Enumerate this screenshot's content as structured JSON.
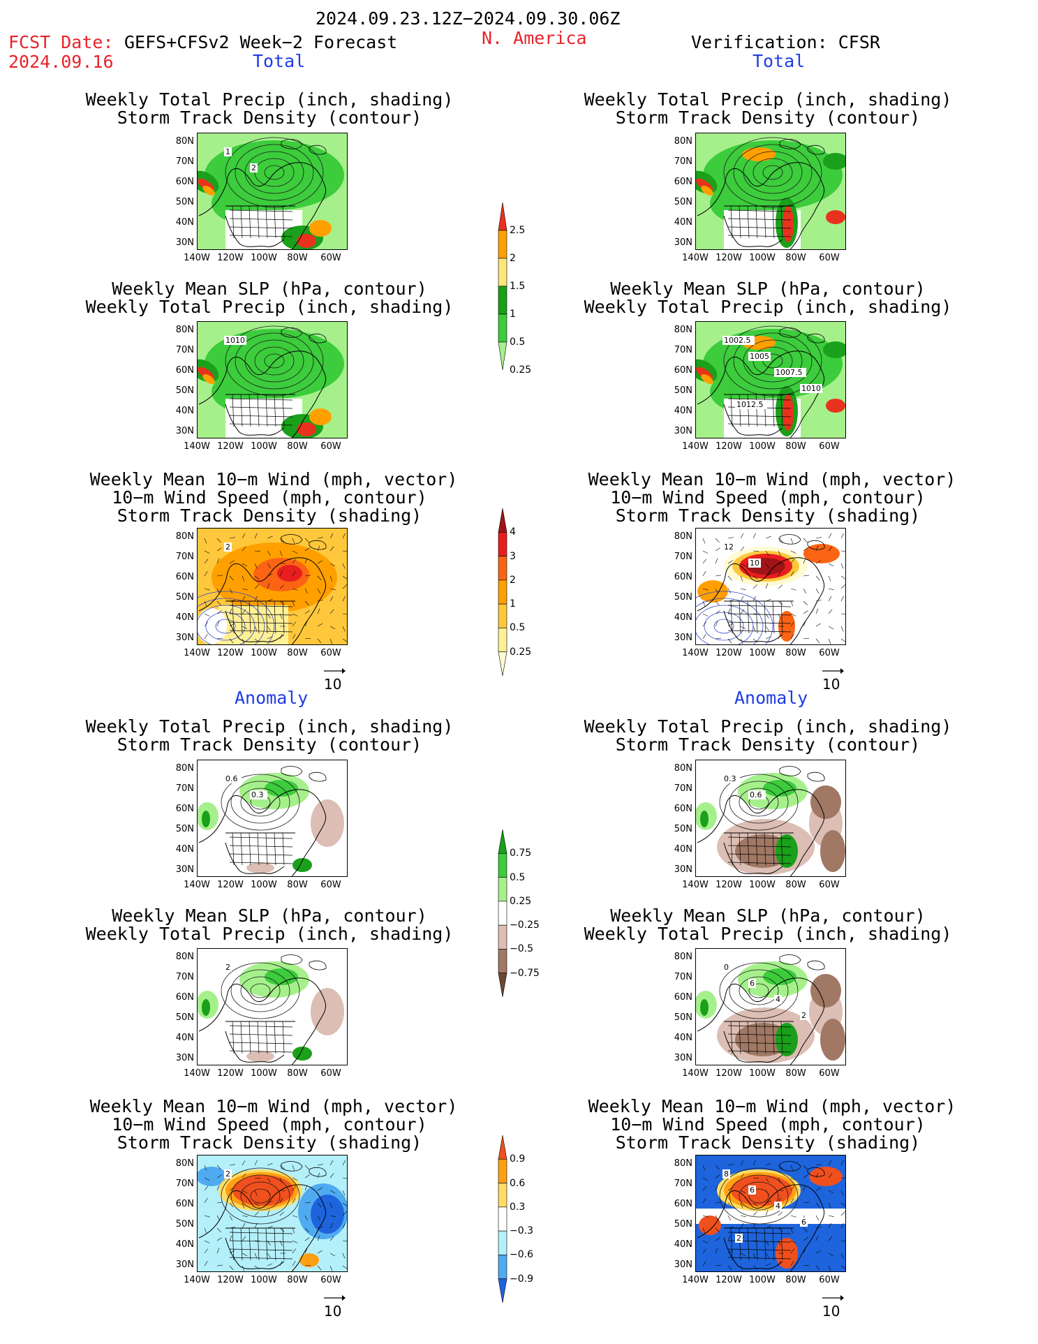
{
  "header": {
    "period": "2024.09.23.12Z−2024.09.30.06Z",
    "fcst_label": "FCST Date:",
    "fcst_date": "2024.09.16",
    "model": "GEFS+CFSv2 Week−2 Forecast",
    "region": "N. America",
    "verification": "Verification: CFSR"
  },
  "sections": {
    "total": "Total",
    "anomaly": "Anomaly"
  },
  "panel_titles": {
    "precip_storm": [
      "Weekly Total Precip (inch, shading)",
      "Storm Track Density (contour)"
    ],
    "slp_precip": [
      "Weekly Mean SLP (hPa, contour)",
      "Weekly Total Precip (inch, shading)"
    ],
    "wind_storm": [
      "Weekly Mean 10−m Wind (mph, vector)",
      "10−m Wind Speed (mph, contour)",
      "Storm Track Density (shading)"
    ]
  },
  "axes": {
    "lat_ticks": [
      "80N",
      "70N",
      "60N",
      "50N",
      "40N",
      "30N"
    ],
    "lon_ticks": [
      "140W",
      "120W",
      "100W",
      "80W",
      "60W"
    ]
  },
  "vector_ref": "10",
  "contour_labels": {
    "fcst_total_precip": [
      "1",
      "2"
    ],
    "fcst_total_slp": [
      "1010"
    ],
    "fcst_total_wind": [
      "2"
    ],
    "obs_total_slp": [
      "1002.5",
      "1005",
      "1007.5",
      "1010",
      "1012.5"
    ],
    "obs_total_wind": [
      "12",
      "10"
    ],
    "fcst_anom_precip": [
      "0.6",
      "0.3"
    ],
    "obs_anom_precip": [
      "0.3",
      "0.6"
    ],
    "fcst_anom_slp": [
      "2"
    ],
    "obs_anom_slp": [
      "0",
      "6",
      "4",
      "2"
    ],
    "fcst_anom_wind": [
      "2"
    ],
    "obs_anom_wind": [
      "8",
      "6",
      "4",
      "6",
      "2"
    ]
  },
  "colorbars": {
    "precip_total": {
      "labels": [
        "2.5",
        "2",
        "1.5",
        "1",
        "0.5",
        "0.25"
      ],
      "colors": [
        "#e8321e",
        "#ffa000",
        "#fde67a",
        "#1aa01a",
        "#3ccc3c",
        "#a6f08c"
      ]
    },
    "storm_total": {
      "labels": [
        "4",
        "3",
        "2",
        "1",
        "0.5",
        "0.25"
      ],
      "colors": [
        "#a01418",
        "#e81e1e",
        "#fa6414",
        "#ffa000",
        "#ffc83c",
        "#fff096",
        "#fffad2"
      ]
    },
    "precip_anom": {
      "labels": [
        "0.75",
        "0.5",
        "0.25",
        "−0.25",
        "−0.5",
        "−0.75"
      ],
      "colors": [
        "#1aa01a",
        "#3ccc3c",
        "#a6f08c",
        "#ffffff",
        "#dcbeb4",
        "#a07864",
        "#6e4632"
      ]
    },
    "storm_anom": {
      "labels": [
        "0.9",
        "0.6",
        "0.3",
        "−0.3",
        "−0.6",
        "−0.9"
      ],
      "colors": [
        "#f0501e",
        "#ffa014",
        "#ffdc64",
        "#ffffff",
        "#b4f0fa",
        "#50aaf0",
        "#1e64dc"
      ]
    }
  }
}
